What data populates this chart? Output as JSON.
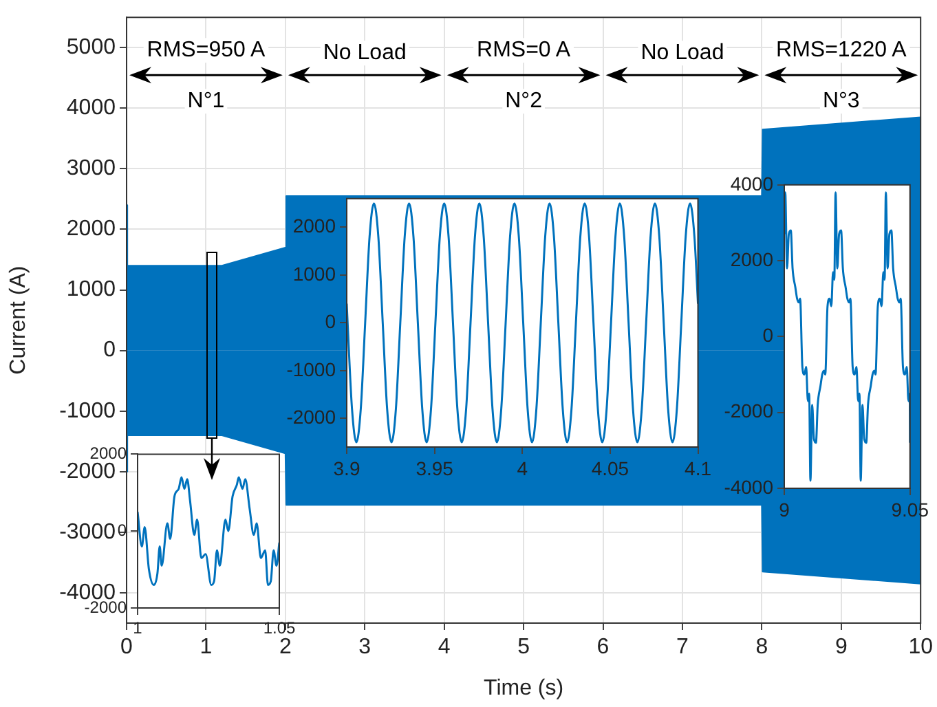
{
  "chart_data": [
    {
      "type": "area",
      "xlabel": "Time (s)",
      "ylabel": "Current (A)",
      "x": [
        0,
        0.01,
        1.2,
        2,
        2.01,
        8,
        8.01,
        10
      ],
      "series": [
        {
          "color": "#0072bd",
          "values": [
            2400,
            1400,
            1400,
            1700,
            2550,
            2550,
            3650,
            3850
          ]
        },
        {
          "color": "#0072bd",
          "values": [
            -2000,
            -1400,
            -1400,
            -1700,
            -2550,
            -2550,
            -3650,
            -3850
          ]
        }
      ],
      "xlim": [
        0,
        10
      ],
      "ylim": [
        -4500,
        5500
      ],
      "xticks": [
        0,
        1,
        2,
        3,
        4,
        5,
        6,
        7,
        8,
        9,
        10
      ],
      "yticks": [
        -4000,
        -3000,
        -2000,
        -1000,
        0,
        1000,
        2000,
        3000,
        4000,
        5000
      ],
      "grid": true,
      "annotations": [
        "RMS=950 A",
        "N°1",
        "No Load",
        "RMS=0 A",
        "N°2",
        "No Load",
        "RMS=1220 A",
        "N°3"
      ]
    },
    {
      "type": "line",
      "color": "#0072bd",
      "x": [
        1,
        1.0015,
        1.0025,
        1.004,
        1.0057,
        1.007,
        1.0078,
        1.0085,
        1.0105,
        1.0115,
        1.013,
        1.0145,
        1.0155,
        1.0165,
        1.0175,
        1.0185,
        1.02,
        1.021,
        1.0225,
        1.024,
        1.026,
        1.027,
        1.028,
        1.029,
        1.031,
        1.032,
        1.0335,
        1.035,
        1.0357,
        1.037,
        1.038,
        1.0395,
        1.041,
        1.042,
        1.0435,
        1.045,
        1.046,
        1.047,
        1.048,
        1.049,
        1.05
      ],
      "values": [
        500,
        -400,
        100,
        -1000,
        -1400,
        -1100,
        -400,
        -900,
        200,
        -200,
        900,
        1100,
        1400,
        1100,
        1350,
        800,
        -100,
        300,
        -700,
        -600,
        -1400,
        -1300,
        -500,
        -900,
        300,
        0,
        900,
        1200,
        1400,
        1100,
        1350,
        600,
        -100,
        200,
        -700,
        -500,
        -1400,
        -1300,
        -500,
        -900,
        -300
      ],
      "xlim": [
        1,
        1.05
      ],
      "ylim": [
        -2000,
        2000
      ],
      "xticks": [
        1,
        1.05
      ],
      "yticks": [
        -2000,
        0,
        2000
      ]
    },
    {
      "type": "line",
      "color": "#0072bd",
      "x": [
        3.9,
        3.9005,
        3.903,
        3.9055,
        3.908,
        3.9105,
        3.913,
        3.9155,
        3.918,
        3.9205,
        3.923,
        3.9255,
        3.928,
        3.9305,
        3.933,
        3.9355,
        3.938,
        3.9405,
        3.943,
        3.9455,
        3.948,
        3.9505,
        3.953,
        3.9555,
        3.958,
        3.9605,
        3.963,
        3.9655,
        3.968,
        3.9705,
        3.973,
        3.9755,
        3.978,
        3.9805,
        3.983,
        3.9855,
        3.988,
        3.9905,
        3.993,
        3.9955,
        3.998,
        4.0005,
        4.003,
        4.0055,
        4.008,
        4.0105,
        4.013,
        4.0155,
        4.018,
        4.0205,
        4.023,
        4.0255,
        4.028,
        4.0305,
        4.033,
        4.0355,
        4.038,
        4.0405,
        4.043,
        4.0455,
        4.048,
        4.0505,
        4.053,
        4.0555,
        4.058,
        4.0605,
        4.063,
        4.0655,
        4.068,
        4.0705,
        4.073,
        4.0755,
        4.078,
        4.0805,
        4.083,
        4.0855,
        4.088,
        4.0905,
        4.093,
        4.0955,
        4.098,
        4.1
      ],
      "values": [
        400,
        0,
        -1800,
        -2500,
        -1800,
        0,
        1800,
        2500,
        1800,
        0,
        -1800,
        -2500,
        -1800,
        0,
        1800,
        2500,
        1800,
        0,
        -1800,
        -2500,
        -1800,
        0,
        1800,
        2500,
        1800,
        0,
        -1800,
        -2500,
        -1800,
        0,
        1800,
        2500,
        1800,
        0,
        -1800,
        -2500,
        -1800,
        0,
        1800,
        2500,
        1800,
        0,
        -1800,
        -2500,
        -1800,
        0,
        1800,
        2500,
        1800,
        0,
        -1800,
        -2500,
        -1800,
        0,
        1800,
        2500,
        1800,
        0,
        -1800,
        -2500,
        -1800,
        0,
        1800,
        2500,
        1800,
        0,
        -1800,
        -2500,
        -1800,
        0,
        1800,
        2500,
        1800,
        0,
        -1800,
        -2500,
        -1800,
        0,
        1800,
        2500,
        1800,
        400
      ],
      "xlim": [
        3.9,
        4.1
      ],
      "ylim": [
        -2600,
        2600
      ],
      "xticks": [
        3.9,
        3.95,
        4,
        4.05,
        4.1
      ],
      "yticks": [
        -2000,
        -1000,
        0,
        1000,
        2000
      ]
    },
    {
      "type": "line",
      "color": "#0072bd",
      "x": [
        9,
        9.0004,
        9.0011,
        9.0018,
        9.0026,
        9.0033,
        9.0044,
        9.0051,
        9.0058,
        9.0063,
        9.0072,
        9.008,
        9.0087,
        9.0094,
        9.0099,
        9.0104,
        9.0111,
        9.0118,
        9.0126,
        9.0133,
        9.0144,
        9.0151,
        9.0158,
        9.0163,
        9.0172,
        9.018,
        9.0187,
        9.0194,
        9.0199,
        9.0204,
        9.0211,
        9.0218,
        9.0226,
        9.0233,
        9.0244,
        9.0251,
        9.0258,
        9.0263,
        9.0272,
        9.028,
        9.0287,
        9.0294,
        9.0299,
        9.0304,
        9.0311,
        9.0318,
        9.0326,
        9.0333,
        9.0344,
        9.0351,
        9.0358,
        9.0363,
        9.0372,
        9.038,
        9.0387,
        9.0394,
        9.0399,
        9.0404,
        9.0411,
        9.0418,
        9.0426,
        9.0433,
        9.0444,
        9.0451,
        9.0458,
        9.0463,
        9.0472,
        9.048,
        9.0487,
        9.0494,
        9.0499,
        9.05
      ],
      "values": [
        2700,
        3800,
        1800,
        2700,
        2800,
        1800,
        1300,
        1000,
        900,
        1000,
        -800,
        -1000,
        -800,
        -1700,
        -1500,
        -3800,
        -1800,
        -2700,
        -2800,
        -1800,
        -1300,
        -1000,
        -900,
        -1000,
        800,
        1000,
        800,
        1700,
        1500,
        3800,
        1800,
        2700,
        2800,
        1800,
        1300,
        1000,
        900,
        1000,
        -800,
        -1000,
        -800,
        -1700,
        -1500,
        -3800,
        -1800,
        -2700,
        -2800,
        -1800,
        -1300,
        -1000,
        -900,
        -1000,
        800,
        1000,
        800,
        1700,
        1500,
        3800,
        1800,
        2700,
        2800,
        1800,
        1300,
        1000,
        900,
        1000,
        -800,
        -1000,
        -800,
        -1700,
        -1500,
        -2800
      ],
      "xlim": [
        9,
        9.05
      ],
      "ylim": [
        -4000,
        4000
      ],
      "xticks": [
        9,
        9.05
      ],
      "yticks": [
        -4000,
        -2000,
        0,
        2000,
        4000
      ]
    }
  ]
}
